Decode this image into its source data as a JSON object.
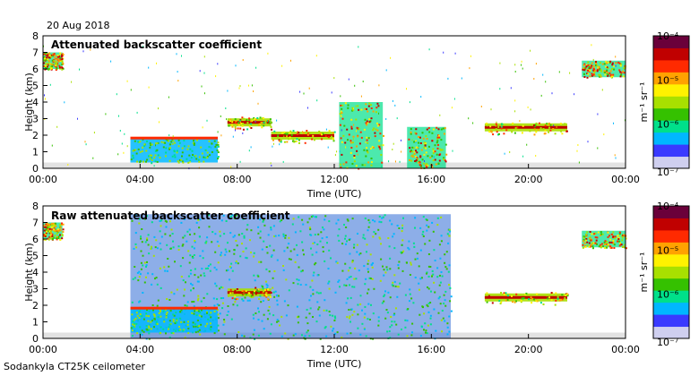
{
  "header": {
    "date": "20 Aug 2018"
  },
  "footer": {
    "station": "Sodankyla CT25K ceilometer"
  },
  "colorscale": {
    "stops": [
      "#cfcfef",
      "#3a3aff",
      "#00b7ff",
      "#00e08a",
      "#35c100",
      "#a8e000",
      "#fff200",
      "#ffa200",
      "#ff2a00",
      "#c00000",
      "#6a003a"
    ],
    "background": "#e2e2e2"
  },
  "chart_data": [
    {
      "type": "heatmap",
      "title": "Attenuated backscatter coefficient",
      "xlabel": "Time (UTC)",
      "ylabel": "Height (km)",
      "xlim": [
        0,
        24
      ],
      "ylim": [
        0,
        8
      ],
      "x_tick_labels": [
        "00:00",
        "04:00",
        "08:00",
        "12:00",
        "16:00",
        "20:00",
        "00:00"
      ],
      "y_tick_labels": [
        "0",
        "1",
        "2",
        "3",
        "4",
        "5",
        "6",
        "7",
        "8"
      ],
      "colorbar": {
        "label": "m⁻¹ sr⁻¹",
        "scale": "log",
        "range": [
          "10⁻⁷",
          "10⁻⁴"
        ],
        "tick_labels": [
          "10⁻⁴",
          "10⁻⁵",
          "10⁻⁶",
          "10⁻⁷"
        ]
      },
      "features": [
        {
          "kind": "cloud",
          "t0": 0.0,
          "t1": 0.8,
          "h0": 6.0,
          "h1": 7.0
        },
        {
          "kind": "boundary_layer",
          "t0": 3.6,
          "t1": 7.2,
          "top_km": 1.8
        },
        {
          "kind": "cloud_layer",
          "t0": 7.6,
          "t1": 9.4,
          "h_km": 2.8
        },
        {
          "kind": "cloud_layer",
          "t0": 9.4,
          "t1": 12.0,
          "h_km": 2.0
        },
        {
          "kind": "convective",
          "t0": 12.2,
          "t1": 14.0,
          "h0": 0.0,
          "h1": 4.0
        },
        {
          "kind": "convective",
          "t0": 15.0,
          "t1": 16.6,
          "h0": 0.0,
          "h1": 2.5
        },
        {
          "kind": "cloud_layer",
          "t0": 18.2,
          "t1": 21.6,
          "h_km": 2.5
        },
        {
          "kind": "cloud",
          "t0": 22.2,
          "t1": 24.0,
          "h0": 5.5,
          "h1": 6.5
        }
      ]
    },
    {
      "type": "heatmap",
      "title": "Raw attenuated backscatter coefficient",
      "xlabel": "Time (UTC)",
      "ylabel": "Height (km)",
      "xlim": [
        0,
        24
      ],
      "ylim": [
        0,
        8
      ],
      "x_tick_labels": [
        "00:00",
        "04:00",
        "08:00",
        "12:00",
        "16:00",
        "20:00",
        "00:00"
      ],
      "y_tick_labels": [
        "0",
        "1",
        "2",
        "3",
        "4",
        "5",
        "6",
        "7",
        "8"
      ],
      "colorbar": {
        "label": "m⁻¹ sr⁻¹",
        "scale": "log",
        "range": [
          "10⁻⁷",
          "10⁻⁴"
        ],
        "tick_labels": [
          "10⁻⁴",
          "10⁻⁵",
          "10⁻⁶",
          "10⁻⁷"
        ]
      },
      "features": [
        {
          "kind": "cloud",
          "t0": 0.0,
          "t1": 0.8,
          "h0": 6.0,
          "h1": 7.0
        },
        {
          "kind": "noise_band",
          "t0": 3.6,
          "t1": 16.8,
          "h0": 0.0,
          "h1": 7.5
        },
        {
          "kind": "boundary_layer",
          "t0": 3.6,
          "t1": 7.2,
          "top_km": 1.8
        },
        {
          "kind": "cloud_layer",
          "t0": 7.6,
          "t1": 9.4,
          "h_km": 2.8
        },
        {
          "kind": "cloud_layer",
          "t0": 18.2,
          "t1": 21.6,
          "h_km": 2.5
        },
        {
          "kind": "cloud",
          "t0": 22.2,
          "t1": 24.0,
          "h0": 5.5,
          "h1": 6.5
        }
      ]
    }
  ]
}
